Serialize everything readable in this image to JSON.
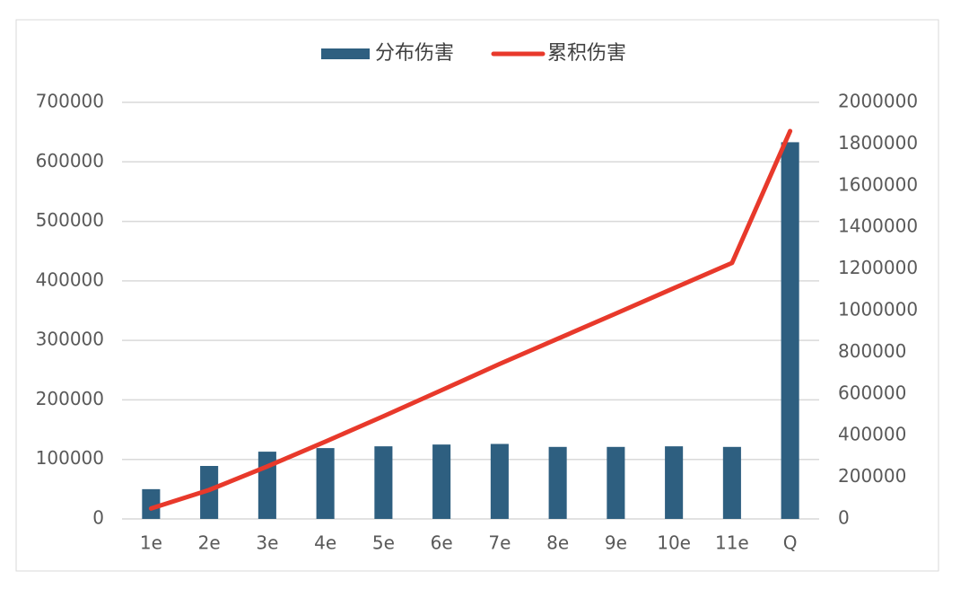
{
  "chart_data": {
    "type": "bar",
    "categories": [
      "1e",
      "2e",
      "3e",
      "4e",
      "5e",
      "6e",
      "7e",
      "8e",
      "9e",
      "10e",
      "11e",
      "Q"
    ],
    "series": [
      {
        "name": "分布伤害",
        "type": "bar",
        "color": "#2e5f80",
        "values": [
          50000,
          89000,
          113000,
          119000,
          122000,
          125000,
          126000,
          121000,
          121000,
          122000,
          121000,
          633000
        ]
      },
      {
        "name": "累积伤害",
        "type": "line",
        "axis": "y2",
        "color": "#e8392b",
        "values": [
          50000,
          139000,
          252000,
          371000,
          493000,
          618000,
          744000,
          865000,
          986000,
          1108000,
          1229000,
          1862000
        ]
      }
    ],
    "ylim": [
      0,
      700000
    ],
    "yticks": [
      0,
      100000,
      200000,
      300000,
      400000,
      500000,
      600000,
      700000
    ],
    "y2lim": [
      0,
      2000000
    ],
    "y2ticks": [
      0,
      200000,
      400000,
      600000,
      800000,
      1000000,
      1200000,
      1400000,
      1600000,
      1800000,
      2000000
    ],
    "grid": true,
    "legend": "top"
  }
}
